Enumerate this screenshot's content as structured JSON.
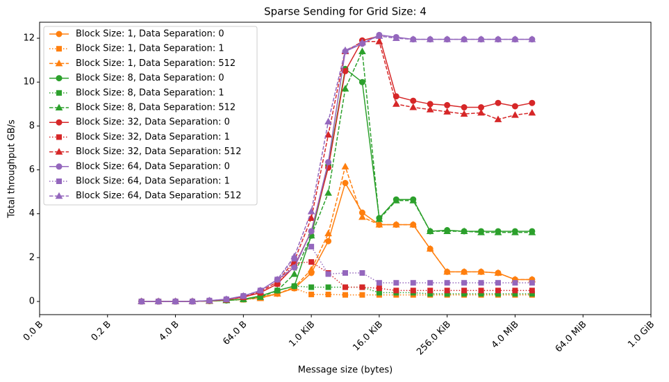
{
  "chart_data": {
    "type": "line",
    "title": "Sparse Sending for Grid Size: 4",
    "x_label": "Message size (bytes)",
    "y_label": "Total throughput GB/s",
    "x_scale": "log2",
    "legend": "upper left",
    "x": [
      1,
      2,
      4,
      8,
      16,
      32,
      64,
      128,
      256,
      512,
      1024,
      2048,
      4096,
      8192,
      16384,
      32768,
      65536,
      131072,
      262144,
      524288,
      1048576,
      2097152,
      4194304,
      8388608
    ],
    "xlim": [
      0.015625,
      1073741824
    ],
    "xticks": [
      {
        "value": 0.015625,
        "label": "0.0 B"
      },
      {
        "value": 0.25,
        "label": "0.2 B"
      },
      {
        "value": 4,
        "label": "4.0 B"
      },
      {
        "value": 64,
        "label": "64.0 B"
      },
      {
        "value": 1024,
        "label": "1.0 KiB"
      },
      {
        "value": 16384,
        "label": "16.0 KiB"
      },
      {
        "value": 262144,
        "label": "256.0 KiB"
      },
      {
        "value": 4194304,
        "label": "4.0 MiB"
      },
      {
        "value": 67108864,
        "label": "64.0 MiB"
      },
      {
        "value": 1073741824,
        "label": "1.0 GiB"
      }
    ],
    "ylim": [
      -0.6,
      12.73
    ],
    "yticks": [
      0,
      2,
      4,
      6,
      8,
      10,
      12
    ],
    "series": [
      {
        "name": "Block Size: 1, Data Separation: 0",
        "color": "#ff7f0e",
        "marker": "circle",
        "linestyle": "solid",
        "values": [
          0,
          0,
          0,
          0,
          0.02,
          0.05,
          0.1,
          0.2,
          0.35,
          0.6,
          1.3,
          2.75,
          5.4,
          4.05,
          3.5,
          3.5,
          3.5,
          2.4,
          1.35,
          1.35,
          1.35,
          1.3,
          1.0,
          1.0
        ]
      },
      {
        "name": "Block Size: 1, Data Separation: 1",
        "color": "#ff7f0e",
        "marker": "square",
        "linestyle": "dotted",
        "values": [
          0,
          0,
          0,
          0,
          0.02,
          0.05,
          0.08,
          0.15,
          0.35,
          0.6,
          0.32,
          0.32,
          0.3,
          0.3,
          0.3,
          0.3,
          0.3,
          0.3,
          0.3,
          0.3,
          0.3,
          0.3,
          0.3,
          0.3
        ]
      },
      {
        "name": "Block Size: 1, Data Separation: 512",
        "color": "#ff7f0e",
        "marker": "triangle",
        "linestyle": "dashed",
        "values": [
          0,
          0,
          0,
          0,
          0.02,
          0.05,
          0.1,
          0.15,
          0.35,
          0.65,
          1.45,
          3.1,
          6.15,
          3.85,
          3.5,
          3.5,
          3.5,
          2.4,
          1.35,
          1.35,
          1.35,
          1.3,
          1.0,
          1.0
        ]
      },
      {
        "name": "Block Size: 8, Data Separation: 0",
        "color": "#2ca02c",
        "marker": "circle",
        "linestyle": "solid",
        "values": [
          0,
          0,
          0,
          0,
          0.02,
          0.05,
          0.1,
          0.25,
          0.5,
          0.7,
          3.0,
          6.2,
          10.6,
          10.0,
          3.8,
          4.65,
          4.65,
          3.2,
          3.25,
          3.2,
          3.2,
          3.2,
          3.2,
          3.2
        ]
      },
      {
        "name": "Block Size: 8, Data Separation: 1",
        "color": "#2ca02c",
        "marker": "square",
        "linestyle": "dotted",
        "values": [
          0,
          0,
          0,
          0,
          0.02,
          0.05,
          0.1,
          0.25,
          0.5,
          0.7,
          0.65,
          0.65,
          0.65,
          0.65,
          0.4,
          0.4,
          0.4,
          0.35,
          0.35,
          0.35,
          0.35,
          0.35,
          0.35,
          0.35
        ]
      },
      {
        "name": "Block Size: 8, Data Separation: 512",
        "color": "#2ca02c",
        "marker": "triangle",
        "linestyle": "dashed",
        "values": [
          0,
          0,
          0,
          0,
          0.02,
          0.05,
          0.1,
          0.2,
          0.5,
          1.25,
          3.0,
          4.95,
          9.7,
          11.4,
          3.75,
          4.6,
          4.6,
          3.2,
          3.2,
          3.2,
          3.15,
          3.15,
          3.15,
          3.15
        ]
      },
      {
        "name": "Block Size: 32, Data Separation: 0",
        "color": "#d62728",
        "marker": "circle",
        "linestyle": "solid",
        "values": [
          0,
          0,
          0,
          0,
          0.03,
          0.08,
          0.2,
          0.4,
          0.8,
          1.6,
          3.2,
          6.1,
          10.5,
          11.9,
          12.1,
          9.35,
          9.15,
          9.0,
          8.95,
          8.85,
          8.85,
          9.05,
          8.9,
          9.05
        ]
      },
      {
        "name": "Block Size: 32, Data Separation: 1",
        "color": "#d62728",
        "marker": "square",
        "linestyle": "dotted",
        "values": [
          0,
          0,
          0,
          0,
          0.03,
          0.08,
          0.2,
          0.4,
          0.8,
          1.75,
          1.8,
          1.3,
          0.65,
          0.65,
          0.6,
          0.5,
          0.5,
          0.5,
          0.5,
          0.5,
          0.5,
          0.5,
          0.5,
          0.5
        ]
      },
      {
        "name": "Block Size: 32, Data Separation: 512",
        "color": "#d62728",
        "marker": "triangle",
        "linestyle": "dashed",
        "values": [
          0,
          0,
          0,
          0,
          0.03,
          0.08,
          0.2,
          0.45,
          0.9,
          1.85,
          3.8,
          7.6,
          11.4,
          11.85,
          11.85,
          9.0,
          8.85,
          8.75,
          8.65,
          8.55,
          8.6,
          8.3,
          8.5,
          8.6
        ]
      },
      {
        "name": "Block Size: 64, Data Separation: 0",
        "color": "#9467bd",
        "marker": "circle",
        "linestyle": "solid",
        "values": [
          0,
          0,
          0,
          0,
          0.04,
          0.1,
          0.25,
          0.5,
          1.0,
          1.55,
          3.2,
          6.35,
          11.4,
          11.75,
          12.15,
          12.05,
          11.95,
          11.95,
          11.95,
          11.95,
          11.95,
          11.95,
          11.95,
          11.95
        ]
      },
      {
        "name": "Block Size: 64, Data Separation: 1",
        "color": "#9467bd",
        "marker": "square",
        "linestyle": "dotted",
        "values": [
          0,
          0,
          0,
          0,
          0.04,
          0.1,
          0.25,
          0.5,
          1.0,
          1.95,
          2.5,
          1.25,
          1.3,
          1.3,
          0.85,
          0.85,
          0.85,
          0.85,
          0.85,
          0.85,
          0.85,
          0.85,
          0.85,
          0.85
        ]
      },
      {
        "name": "Block Size: 64, Data Separation: 512",
        "color": "#9467bd",
        "marker": "triangle",
        "linestyle": "dashed",
        "values": [
          0,
          0,
          0,
          0,
          0.04,
          0.1,
          0.25,
          0.5,
          1.0,
          2.05,
          4.1,
          8.2,
          11.45,
          11.8,
          12.1,
          12.0,
          11.95,
          11.95,
          11.95,
          11.95,
          11.95,
          11.95,
          11.95,
          11.95
        ]
      }
    ]
  }
}
